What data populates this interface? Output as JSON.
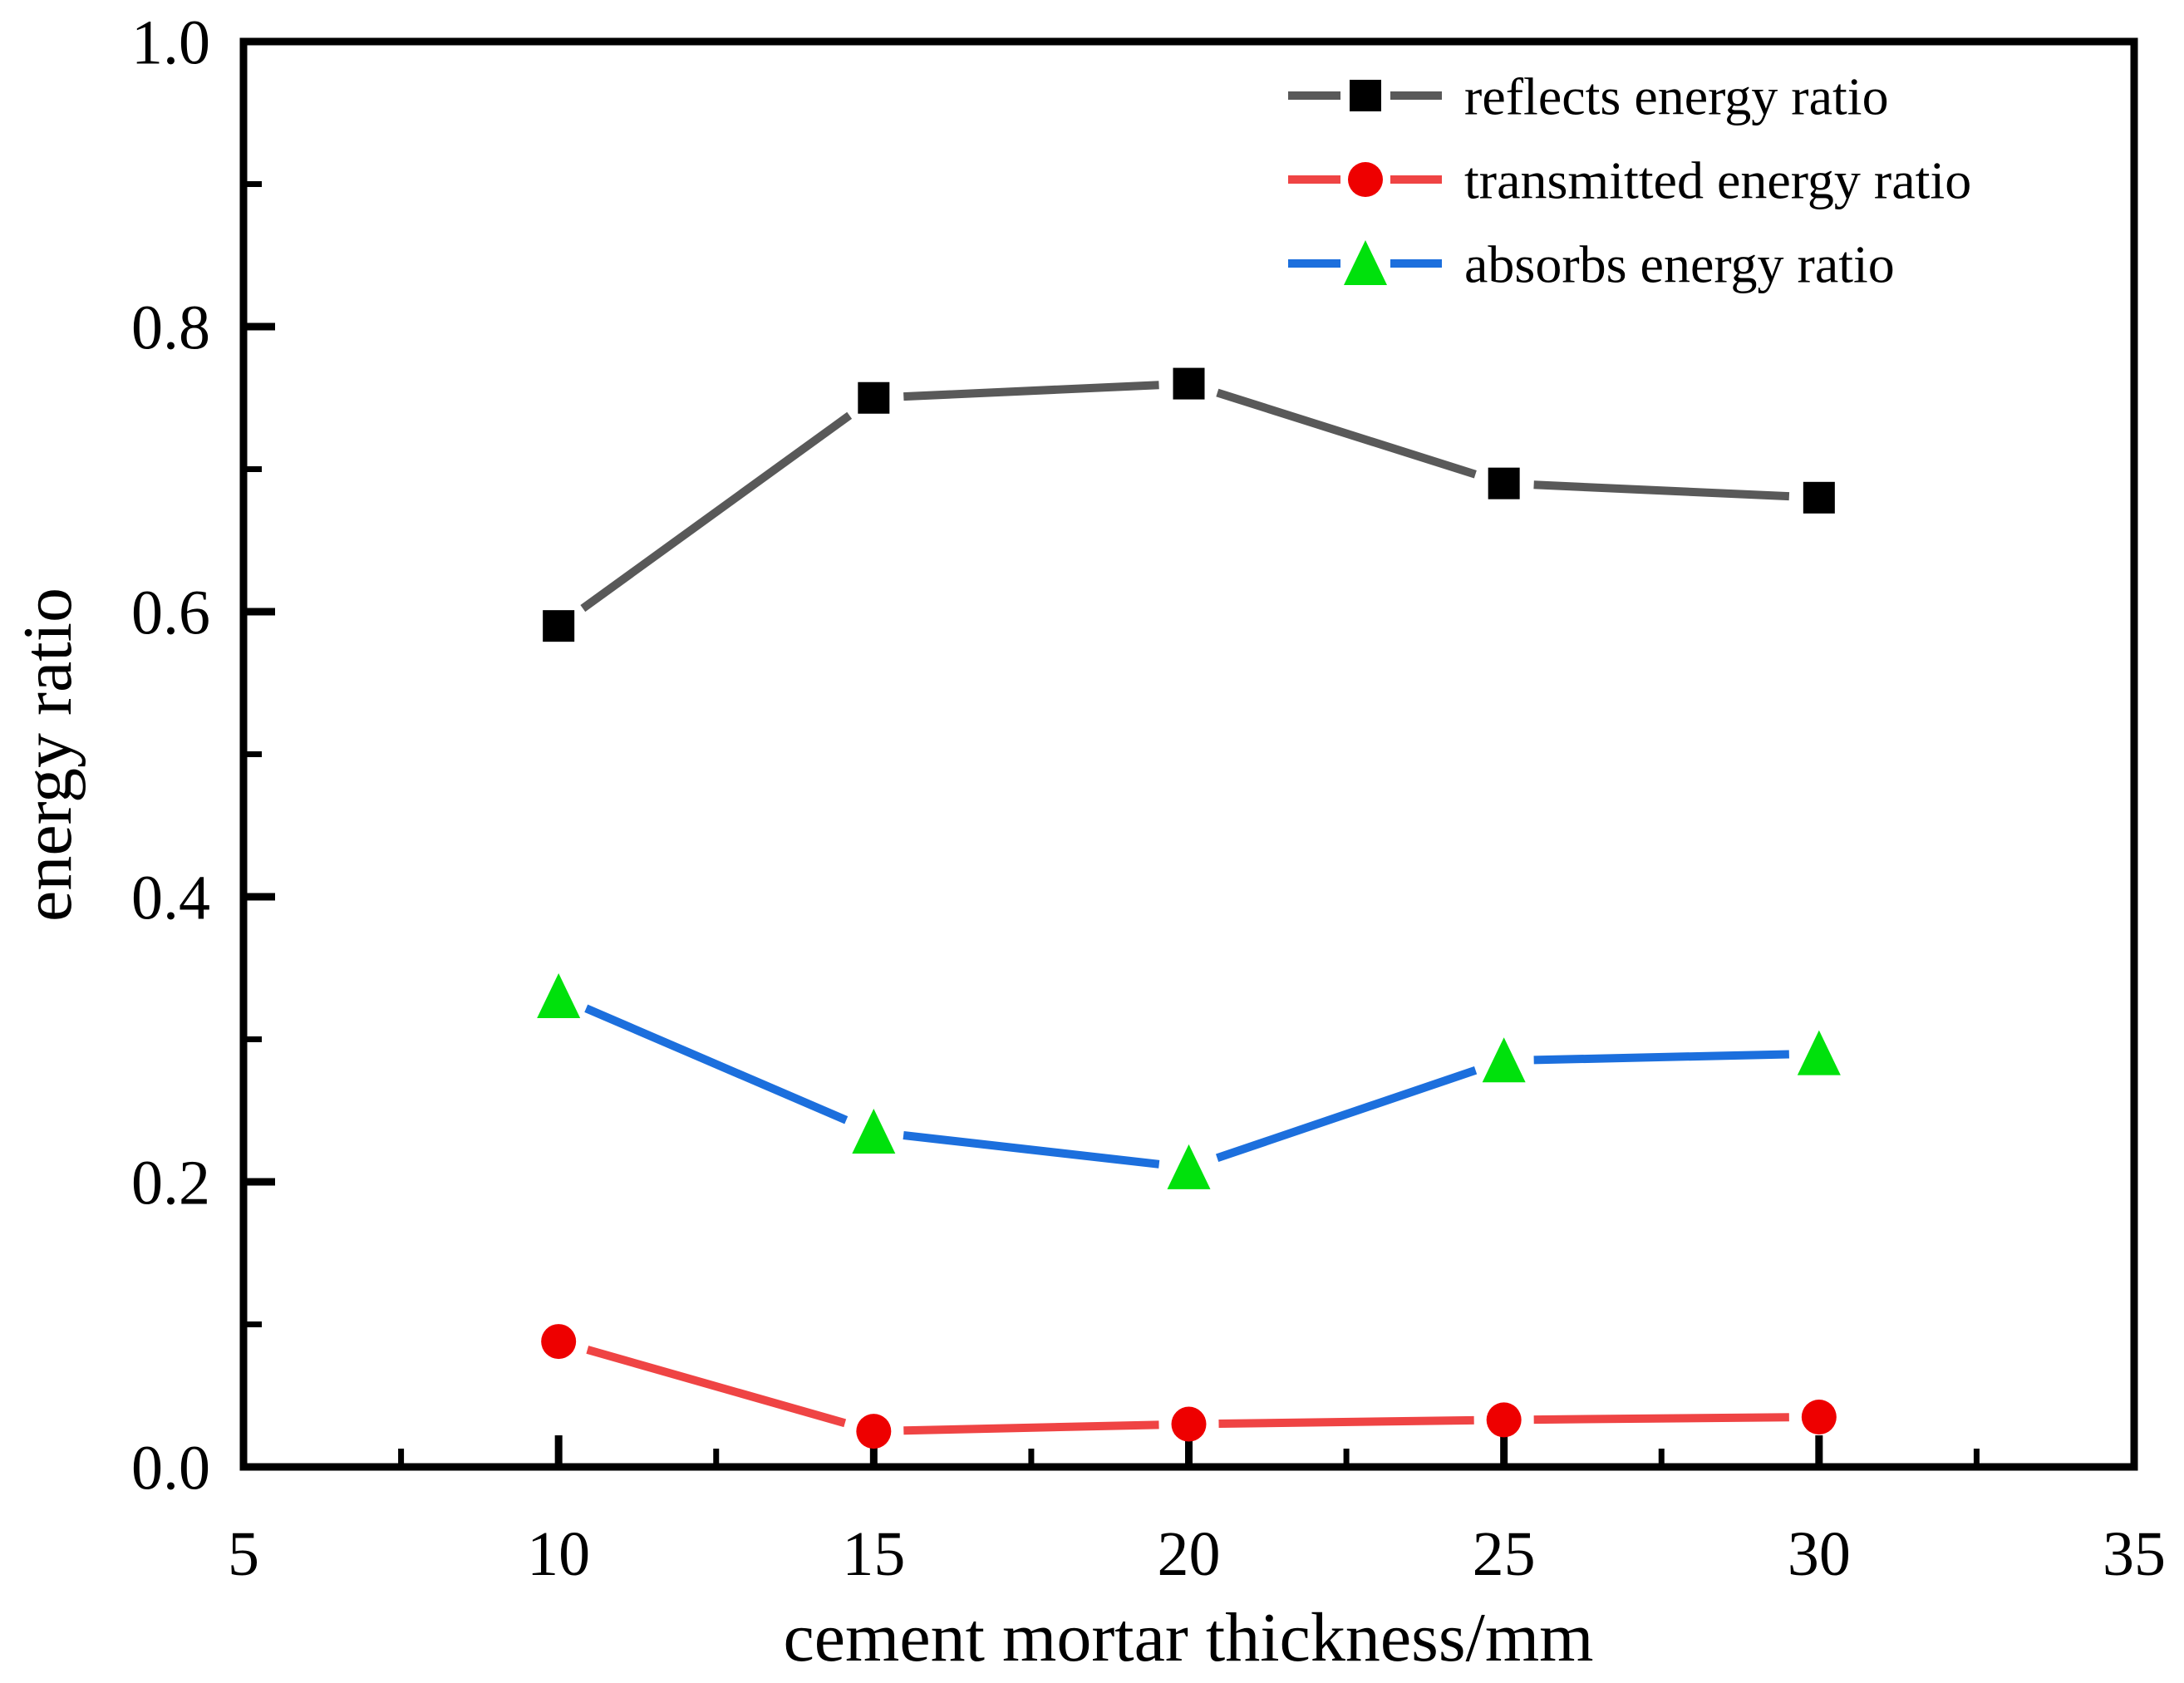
{
  "chart_data": {
    "type": "line",
    "title": "",
    "xlabel": "cement mortar thickness/mm",
    "ylabel": "energy ratio",
    "xlim": [
      5,
      35
    ],
    "ylim": [
      0.0,
      1.0
    ],
    "grid": false,
    "legend_position": "upper right inside",
    "background_color": "#ffffff",
    "axis_color": "#000000",
    "x": [
      10,
      15,
      20,
      25,
      30
    ],
    "series": [
      {
        "name": "reflects energy ratio",
        "values": [
          0.59,
          0.75,
          0.76,
          0.69,
          0.68
        ],
        "line_color": "#595959",
        "marker": "square",
        "marker_color": "#000000"
      },
      {
        "name": "transmitted energy ratio",
        "values": [
          0.088,
          0.025,
          0.03,
          0.033,
          0.035
        ],
        "line_color": "#ef4444",
        "marker": "circle",
        "marker_color": "#ee0000"
      },
      {
        "name": "absorbs energy ratio",
        "values": [
          0.33,
          0.235,
          0.21,
          0.285,
          0.29
        ],
        "line_color": "#1c6fdd",
        "marker": "triangle",
        "marker_color": "#00e10c"
      }
    ],
    "x_major_ticks": [
      5,
      10,
      15,
      20,
      25,
      30,
      35
    ],
    "x_minor_ticks": [
      7.5,
      12.5,
      17.5,
      22.5,
      27.5,
      32.5
    ],
    "y_major_ticks": [
      0.0,
      0.2,
      0.4,
      0.6,
      0.8,
      1.0
    ],
    "y_minor_ticks": [
      0.1,
      0.3,
      0.5,
      0.7,
      0.9
    ],
    "x_tick_labels": [
      "5",
      "10",
      "15",
      "20",
      "25",
      "30",
      "35"
    ],
    "y_tick_labels": [
      "0.0",
      "0.2",
      "0.4",
      "0.6",
      "0.8",
      "1.0"
    ]
  }
}
